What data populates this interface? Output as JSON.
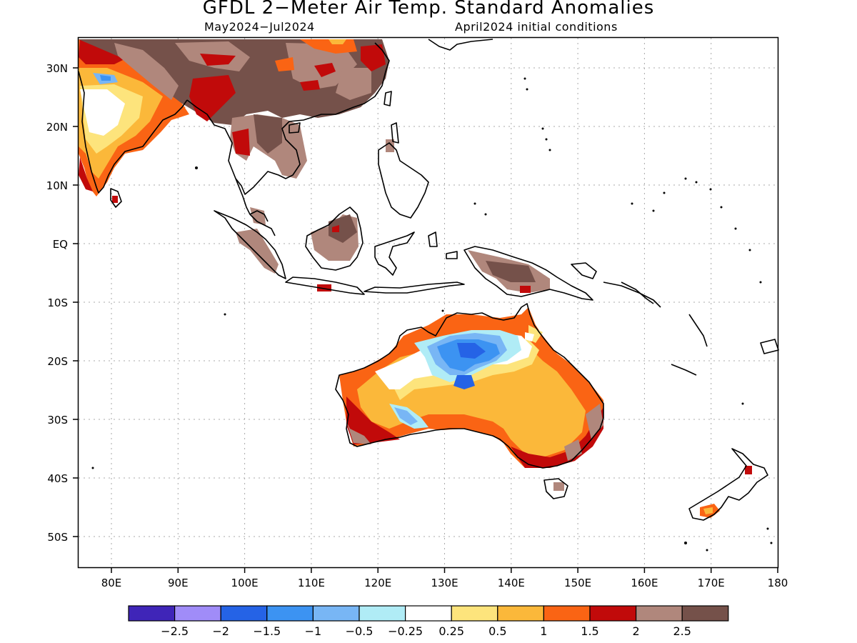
{
  "title": "GFDL 2−Meter Air Temp. Standard Anomalies",
  "period": "May2024−Jul2024",
  "initial_conditions": "April2024 initial conditions",
  "lat_labels": [
    "30N",
    "20N",
    "10N",
    "EQ",
    "10S",
    "20S",
    "30S",
    "40S",
    "50S"
  ],
  "lon_labels": [
    "80E",
    "90E",
    "100E",
    "110E",
    "120E",
    "130E",
    "140E",
    "150E",
    "160E",
    "170E",
    "180"
  ],
  "colorbar": {
    "colors": [
      "#3f25b8",
      "#a08cf8",
      "#2563e6",
      "#3c93f2",
      "#78b6f5",
      "#b0ecf6",
      "#ffffff",
      "#fde47c",
      "#fbb83a",
      "#fa6414",
      "#c10a0a",
      "#b0877c",
      "#75514a"
    ],
    "labels": [
      "−2.5",
      "−2",
      "−1.5",
      "−1",
      "−0.5",
      "−0.25",
      "0.25",
      "0.5",
      "1",
      "1.5",
      "2",
      "2.5"
    ]
  }
}
